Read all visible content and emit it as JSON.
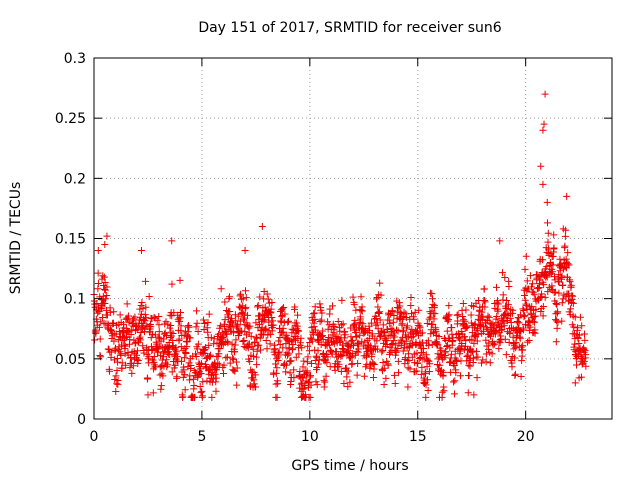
{
  "chart_data": {
    "type": "scatter",
    "title": "Day 151 of 2017, SRMTID for receiver sun6",
    "xlabel": "GPS time / hours",
    "ylabel": "SRMTID / TECUs",
    "xlim": [
      0,
      24
    ],
    "ylim": [
      0,
      0.3
    ],
    "xticks": [
      0,
      5,
      10,
      15,
      20
    ],
    "xtick_labels": [
      "0",
      "5",
      "10",
      "15",
      "20"
    ],
    "yticks": [
      0,
      0.05,
      0.1,
      0.15,
      0.2,
      0.25,
      0.3
    ],
    "ytick_labels": [
      "0",
      "0.05",
      "0.1",
      "0.15",
      "0.2",
      "0.25",
      "0.3"
    ],
    "grid": true,
    "marker": "+",
    "colors": {
      "series": "#ee0000",
      "grid": "#a0a0a0",
      "axis": "#000000"
    },
    "series": [
      {
        "name": "sun6",
        "x_range": [
          0,
          22.8
        ],
        "sample_interval_hours": 0.012,
        "notable_points": [
          {
            "x": 0.2,
            "y": 0.14
          },
          {
            "x": 0.6,
            "y": 0.152
          },
          {
            "x": 0.5,
            "y": 0.145
          },
          {
            "x": 2.2,
            "y": 0.14
          },
          {
            "x": 2.5,
            "y": 0.02
          },
          {
            "x": 3.6,
            "y": 0.148
          },
          {
            "x": 7.8,
            "y": 0.16
          },
          {
            "x": 7.0,
            "y": 0.14
          },
          {
            "x": 9.6,
            "y": 0.023
          },
          {
            "x": 17.6,
            "y": 0.02
          },
          {
            "x": 18.8,
            "y": 0.148
          },
          {
            "x": 20.7,
            "y": 0.21
          },
          {
            "x": 20.8,
            "y": 0.24
          },
          {
            "x": 20.85,
            "y": 0.245
          },
          {
            "x": 20.9,
            "y": 0.27
          },
          {
            "x": 20.8,
            "y": 0.195
          },
          {
            "x": 21.0,
            "y": 0.18
          },
          {
            "x": 21.3,
            "y": 0.153
          },
          {
            "x": 21.9,
            "y": 0.185
          },
          {
            "x": 22.3,
            "y": 0.03
          }
        ],
        "baseline_profile": [
          {
            "x": 0,
            "y": 0.095
          },
          {
            "x": 0.5,
            "y": 0.085
          },
          {
            "x": 1,
            "y": 0.06
          },
          {
            "x": 2,
            "y": 0.07
          },
          {
            "x": 3,
            "y": 0.068
          },
          {
            "x": 4,
            "y": 0.065
          },
          {
            "x": 5,
            "y": 0.062
          },
          {
            "x": 6,
            "y": 0.05
          },
          {
            "x": 7,
            "y": 0.075
          },
          {
            "x": 8,
            "y": 0.072
          },
          {
            "x": 9,
            "y": 0.06
          },
          {
            "x": 10,
            "y": 0.062
          },
          {
            "x": 11,
            "y": 0.068
          },
          {
            "x": 12,
            "y": 0.065
          },
          {
            "x": 13,
            "y": 0.062
          },
          {
            "x": 14,
            "y": 0.06
          },
          {
            "x": 15,
            "y": 0.058
          },
          {
            "x": 16,
            "y": 0.062
          },
          {
            "x": 17,
            "y": 0.066
          },
          {
            "x": 18,
            "y": 0.068
          },
          {
            "x": 18.8,
            "y": 0.085
          },
          {
            "x": 19.5,
            "y": 0.08
          },
          {
            "x": 20,
            "y": 0.095
          },
          {
            "x": 20.5,
            "y": 0.11
          },
          {
            "x": 21,
            "y": 0.11
          },
          {
            "x": 21.5,
            "y": 0.1
          },
          {
            "x": 22,
            "y": 0.1
          },
          {
            "x": 22.5,
            "y": 0.065
          },
          {
            "x": 22.8,
            "y": 0.06
          }
        ],
        "spread": 0.022
      }
    ]
  }
}
